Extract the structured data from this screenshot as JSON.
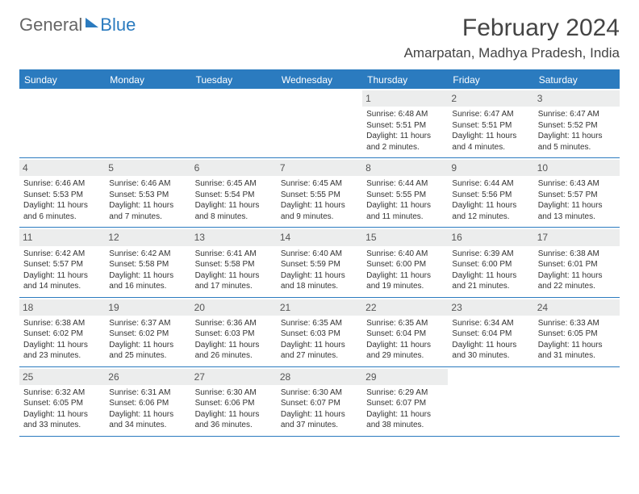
{
  "brand": {
    "part1": "General",
    "part2": "Blue"
  },
  "title": "February 2024",
  "location": "Amarpatan, Madhya Pradesh, India",
  "colors": {
    "header_bg": "#2b7bbf",
    "header_text": "#ffffff",
    "date_bg": "#eceded",
    "border": "#2b7bbf",
    "text": "#333333"
  },
  "day_names": [
    "Sunday",
    "Monday",
    "Tuesday",
    "Wednesday",
    "Thursday",
    "Friday",
    "Saturday"
  ],
  "weeks": [
    [
      {
        "empty": true
      },
      {
        "empty": true
      },
      {
        "empty": true
      },
      {
        "empty": true
      },
      {
        "date": "1",
        "sunrise": "Sunrise: 6:48 AM",
        "sunset": "Sunset: 5:51 PM",
        "daylight": "Daylight: 11 hours and 2 minutes."
      },
      {
        "date": "2",
        "sunrise": "Sunrise: 6:47 AM",
        "sunset": "Sunset: 5:51 PM",
        "daylight": "Daylight: 11 hours and 4 minutes."
      },
      {
        "date": "3",
        "sunrise": "Sunrise: 6:47 AM",
        "sunset": "Sunset: 5:52 PM",
        "daylight": "Daylight: 11 hours and 5 minutes."
      }
    ],
    [
      {
        "date": "4",
        "sunrise": "Sunrise: 6:46 AM",
        "sunset": "Sunset: 5:53 PM",
        "daylight": "Daylight: 11 hours and 6 minutes."
      },
      {
        "date": "5",
        "sunrise": "Sunrise: 6:46 AM",
        "sunset": "Sunset: 5:53 PM",
        "daylight": "Daylight: 11 hours and 7 minutes."
      },
      {
        "date": "6",
        "sunrise": "Sunrise: 6:45 AM",
        "sunset": "Sunset: 5:54 PM",
        "daylight": "Daylight: 11 hours and 8 minutes."
      },
      {
        "date": "7",
        "sunrise": "Sunrise: 6:45 AM",
        "sunset": "Sunset: 5:55 PM",
        "daylight": "Daylight: 11 hours and 9 minutes."
      },
      {
        "date": "8",
        "sunrise": "Sunrise: 6:44 AM",
        "sunset": "Sunset: 5:55 PM",
        "daylight": "Daylight: 11 hours and 11 minutes."
      },
      {
        "date": "9",
        "sunrise": "Sunrise: 6:44 AM",
        "sunset": "Sunset: 5:56 PM",
        "daylight": "Daylight: 11 hours and 12 minutes."
      },
      {
        "date": "10",
        "sunrise": "Sunrise: 6:43 AM",
        "sunset": "Sunset: 5:57 PM",
        "daylight": "Daylight: 11 hours and 13 minutes."
      }
    ],
    [
      {
        "date": "11",
        "sunrise": "Sunrise: 6:42 AM",
        "sunset": "Sunset: 5:57 PM",
        "daylight": "Daylight: 11 hours and 14 minutes."
      },
      {
        "date": "12",
        "sunrise": "Sunrise: 6:42 AM",
        "sunset": "Sunset: 5:58 PM",
        "daylight": "Daylight: 11 hours and 16 minutes."
      },
      {
        "date": "13",
        "sunrise": "Sunrise: 6:41 AM",
        "sunset": "Sunset: 5:58 PM",
        "daylight": "Daylight: 11 hours and 17 minutes."
      },
      {
        "date": "14",
        "sunrise": "Sunrise: 6:40 AM",
        "sunset": "Sunset: 5:59 PM",
        "daylight": "Daylight: 11 hours and 18 minutes."
      },
      {
        "date": "15",
        "sunrise": "Sunrise: 6:40 AM",
        "sunset": "Sunset: 6:00 PM",
        "daylight": "Daylight: 11 hours and 19 minutes."
      },
      {
        "date": "16",
        "sunrise": "Sunrise: 6:39 AM",
        "sunset": "Sunset: 6:00 PM",
        "daylight": "Daylight: 11 hours and 21 minutes."
      },
      {
        "date": "17",
        "sunrise": "Sunrise: 6:38 AM",
        "sunset": "Sunset: 6:01 PM",
        "daylight": "Daylight: 11 hours and 22 minutes."
      }
    ],
    [
      {
        "date": "18",
        "sunrise": "Sunrise: 6:38 AM",
        "sunset": "Sunset: 6:02 PM",
        "daylight": "Daylight: 11 hours and 23 minutes."
      },
      {
        "date": "19",
        "sunrise": "Sunrise: 6:37 AM",
        "sunset": "Sunset: 6:02 PM",
        "daylight": "Daylight: 11 hours and 25 minutes."
      },
      {
        "date": "20",
        "sunrise": "Sunrise: 6:36 AM",
        "sunset": "Sunset: 6:03 PM",
        "daylight": "Daylight: 11 hours and 26 minutes."
      },
      {
        "date": "21",
        "sunrise": "Sunrise: 6:35 AM",
        "sunset": "Sunset: 6:03 PM",
        "daylight": "Daylight: 11 hours and 27 minutes."
      },
      {
        "date": "22",
        "sunrise": "Sunrise: 6:35 AM",
        "sunset": "Sunset: 6:04 PM",
        "daylight": "Daylight: 11 hours and 29 minutes."
      },
      {
        "date": "23",
        "sunrise": "Sunrise: 6:34 AM",
        "sunset": "Sunset: 6:04 PM",
        "daylight": "Daylight: 11 hours and 30 minutes."
      },
      {
        "date": "24",
        "sunrise": "Sunrise: 6:33 AM",
        "sunset": "Sunset: 6:05 PM",
        "daylight": "Daylight: 11 hours and 31 minutes."
      }
    ],
    [
      {
        "date": "25",
        "sunrise": "Sunrise: 6:32 AM",
        "sunset": "Sunset: 6:05 PM",
        "daylight": "Daylight: 11 hours and 33 minutes."
      },
      {
        "date": "26",
        "sunrise": "Sunrise: 6:31 AM",
        "sunset": "Sunset: 6:06 PM",
        "daylight": "Daylight: 11 hours and 34 minutes."
      },
      {
        "date": "27",
        "sunrise": "Sunrise: 6:30 AM",
        "sunset": "Sunset: 6:06 PM",
        "daylight": "Daylight: 11 hours and 36 minutes."
      },
      {
        "date": "28",
        "sunrise": "Sunrise: 6:30 AM",
        "sunset": "Sunset: 6:07 PM",
        "daylight": "Daylight: 11 hours and 37 minutes."
      },
      {
        "date": "29",
        "sunrise": "Sunrise: 6:29 AM",
        "sunset": "Sunset: 6:07 PM",
        "daylight": "Daylight: 11 hours and 38 minutes."
      },
      {
        "empty": true
      },
      {
        "empty": true
      }
    ]
  ]
}
